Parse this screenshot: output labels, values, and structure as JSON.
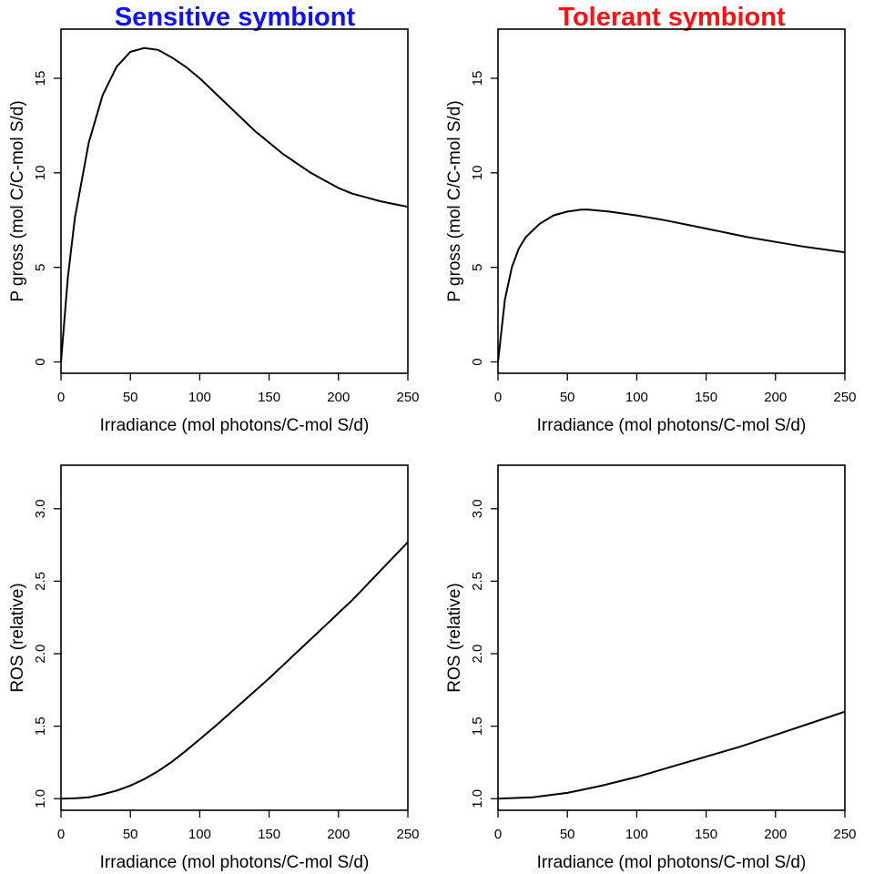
{
  "column_titles": [
    {
      "text": "Sensitive symbiont",
      "color": "#1010ff"
    },
    {
      "text": "Tolerant symbiont",
      "color": "#ff1010"
    }
  ],
  "chart_data": [
    {
      "type": "line",
      "panel": "top-left",
      "xlabel": "Irradiance (mol photons/C-mol S/d)",
      "ylabel": "P gross (mol C/C-mol S/d)",
      "xlim": [
        0,
        250
      ],
      "ylim": [
        -0.6,
        17.6
      ],
      "xticks": [
        0,
        50,
        100,
        150,
        200,
        250
      ],
      "yticks": [
        0,
        5,
        10,
        15
      ],
      "grid": false,
      "series": [
        {
          "x": [
            0,
            5,
            10,
            20,
            30,
            40,
            50,
            60,
            70,
            80,
            90,
            100,
            110,
            120,
            130,
            140,
            150,
            160,
            170,
            180,
            190,
            200,
            210,
            220,
            230,
            240,
            250
          ],
          "values": [
            0,
            4.5,
            7.6,
            11.6,
            14.1,
            15.6,
            16.4,
            16.6,
            16.5,
            16.1,
            15.6,
            15.0,
            14.3,
            13.6,
            12.9,
            12.2,
            11.6,
            11.0,
            10.5,
            10.0,
            9.6,
            9.2,
            8.9,
            8.7,
            8.5,
            8.35,
            8.2
          ]
        }
      ]
    },
    {
      "type": "line",
      "panel": "top-right",
      "xlabel": "Irradiance (mol photons/C-mol S/d)",
      "ylabel": "P gross (mol C/C-mol S/d)",
      "xlim": [
        0,
        250
      ],
      "ylim": [
        -0.6,
        17.6
      ],
      "xticks": [
        0,
        50,
        100,
        150,
        200,
        250
      ],
      "yticks": [
        0,
        5,
        10,
        15
      ],
      "grid": false,
      "series": [
        {
          "x": [
            0,
            5,
            10,
            15,
            20,
            30,
            40,
            50,
            60,
            65,
            80,
            100,
            120,
            140,
            160,
            180,
            200,
            220,
            250
          ],
          "values": [
            0,
            3.3,
            5.0,
            6.0,
            6.6,
            7.3,
            7.75,
            7.95,
            8.05,
            8.05,
            7.95,
            7.75,
            7.5,
            7.2,
            6.9,
            6.6,
            6.35,
            6.1,
            5.8
          ]
        }
      ]
    },
    {
      "type": "line",
      "panel": "bottom-left",
      "xlabel": "Irradiance (mol photons/C-mol S/d)",
      "ylabel": "ROS (relative)",
      "xlim": [
        0,
        250
      ],
      "ylim": [
        0.92,
        3.3
      ],
      "xticks": [
        0,
        50,
        100,
        150,
        200,
        250
      ],
      "yticks": [
        1.0,
        1.5,
        2.0,
        2.5,
        3.0
      ],
      "ytick_labels": [
        "1.0",
        "1.5",
        "2.0",
        "2.5",
        "3.0"
      ],
      "grid": false,
      "series": [
        {
          "x": [
            0,
            10,
            20,
            30,
            40,
            50,
            60,
            70,
            80,
            90,
            100,
            110,
            120,
            130,
            140,
            150,
            160,
            170,
            180,
            190,
            200,
            210,
            220,
            230,
            240,
            250
          ],
          "values": [
            1.0,
            1.002,
            1.01,
            1.03,
            1.055,
            1.09,
            1.135,
            1.19,
            1.255,
            1.33,
            1.41,
            1.49,
            1.575,
            1.66,
            1.745,
            1.83,
            1.92,
            2.01,
            2.1,
            2.19,
            2.28,
            2.37,
            2.47,
            2.57,
            2.67,
            2.77
          ]
        }
      ]
    },
    {
      "type": "line",
      "panel": "bottom-right",
      "xlabel": "Irradiance (mol photons/C-mol S/d)",
      "ylabel": "ROS (relative)",
      "xlim": [
        0,
        250
      ],
      "ylim": [
        0.92,
        3.3
      ],
      "xticks": [
        0,
        50,
        100,
        150,
        200,
        250
      ],
      "yticks": [
        1.0,
        1.5,
        2.0,
        2.5,
        3.0
      ],
      "ytick_labels": [
        "1.0",
        "1.5",
        "2.0",
        "2.5",
        "3.0"
      ],
      "grid": false,
      "series": [
        {
          "x": [
            0,
            25,
            50,
            75,
            100,
            125,
            150,
            175,
            200,
            225,
            250
          ],
          "values": [
            1.0,
            1.01,
            1.04,
            1.09,
            1.15,
            1.22,
            1.29,
            1.36,
            1.44,
            1.52,
            1.6
          ]
        }
      ]
    }
  ]
}
